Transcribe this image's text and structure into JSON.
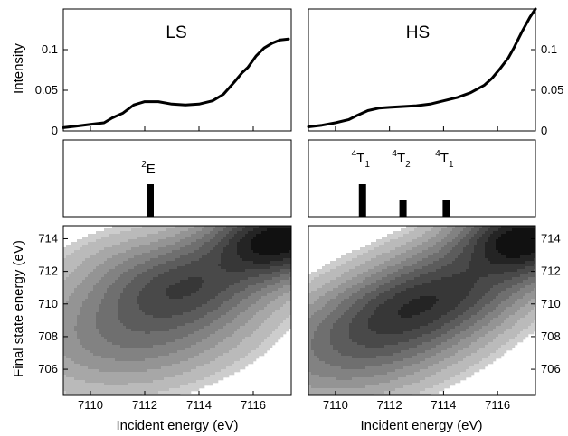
{
  "chart_data": {
    "type": "multi-panel",
    "x_axis": {
      "label": "Incident energy (eV)",
      "range": [
        7109,
        7117.4
      ],
      "ticks": [
        7110,
        7112,
        7114,
        7116
      ]
    },
    "y_top": {
      "label": "Intensity",
      "range": [
        0,
        0.15
      ],
      "ticks": [
        0,
        0.05,
        0.1
      ],
      "tick_labels": [
        "0",
        "0.05",
        "0.1"
      ]
    },
    "y_bottom": {
      "label": "Final state energy (eV)",
      "range": [
        704.4,
        714.8
      ],
      "ticks": [
        706,
        708,
        710,
        712,
        714
      ]
    },
    "panels": [
      {
        "title": "LS",
        "spectrum": {
          "x": [
            7109.0,
            7109.5,
            7110.0,
            7110.5,
            7110.8,
            7111.2,
            7111.6,
            7112.0,
            7112.5,
            7113.0,
            7113.5,
            7114.0,
            7114.5,
            7114.9,
            7115.3,
            7115.6,
            7115.8,
            7116.1,
            7116.4,
            7116.7,
            7117.0,
            7117.3
          ],
          "y": [
            0.004,
            0.006,
            0.008,
            0.01,
            0.016,
            0.022,
            0.032,
            0.036,
            0.036,
            0.033,
            0.032,
            0.033,
            0.037,
            0.045,
            0.06,
            0.072,
            0.078,
            0.092,
            0.102,
            0.108,
            0.112,
            0.113
          ]
        },
        "transitions": [
          {
            "term": "E",
            "multiplicity": "2",
            "subscript": "",
            "energy": 7112.2,
            "strength": 0.8
          }
        ],
        "contours": [
          {
            "cx": 7112.1,
            "cy": 709.0,
            "rx": 2.8,
            "ry": 2.1,
            "rot": 40,
            "peak": 0.42,
            "angle_y": 1
          },
          {
            "cx": 7113.4,
            "cy": 710.9,
            "rx": 1.6,
            "ry": 1.3,
            "rot": 30,
            "peak": 0.22,
            "angle_y": 1
          },
          {
            "cx": 7115.0,
            "cy": 712.4,
            "rx": 2.2,
            "ry": 1.6,
            "rot": 30,
            "peak": 0.28,
            "angle_y": 1
          },
          {
            "cx": 7117.0,
            "cy": 714.0,
            "rx": 1.5,
            "ry": 1.3,
            "rot": 30,
            "peak": 1.0,
            "angle_y": 1
          },
          {
            "cx": 7111.5,
            "cy": 712.2,
            "rx": 1.8,
            "ry": 1.6,
            "rot": 0,
            "peak": 0.08,
            "angle_y": 1
          }
        ]
      },
      {
        "title": "HS",
        "spectrum": {
          "x": [
            7109.0,
            7109.5,
            7110.0,
            7110.5,
            7110.8,
            7111.2,
            7111.6,
            7112.0,
            7112.5,
            7113.0,
            7113.5,
            7114.0,
            7114.5,
            7115.0,
            7115.5,
            7115.8,
            7116.1,
            7116.4,
            7116.6,
            7116.9,
            7117.2,
            7117.4
          ],
          "y": [
            0.005,
            0.007,
            0.01,
            0.014,
            0.019,
            0.025,
            0.028,
            0.029,
            0.03,
            0.031,
            0.033,
            0.037,
            0.041,
            0.047,
            0.056,
            0.065,
            0.077,
            0.09,
            0.102,
            0.122,
            0.14,
            0.15
          ]
        },
        "transitions": [
          {
            "term": "T",
            "multiplicity": "4",
            "subscript": "1",
            "energy": 7111.0,
            "strength": 0.8
          },
          {
            "term": "T",
            "multiplicity": "4",
            "subscript": "2",
            "energy": 7112.5,
            "strength": 0.4
          },
          {
            "term": "T",
            "multiplicity": "4",
            "subscript": "1",
            "energy": 7114.1,
            "strength": 0.4
          }
        ],
        "contours": [
          {
            "cx": 7111.6,
            "cy": 708.3,
            "rx": 3.0,
            "ry": 1.9,
            "rot": 40,
            "peak": 0.5,
            "angle_y": 1
          },
          {
            "cx": 7112.4,
            "cy": 709.5,
            "rx": 1.8,
            "ry": 1.3,
            "rot": 40,
            "peak": 0.22,
            "angle_y": 1
          },
          {
            "cx": 7114.1,
            "cy": 710.5,
            "rx": 1.8,
            "ry": 1.4,
            "rot": 30,
            "peak": 0.25,
            "angle_y": 1
          },
          {
            "cx": 7115.4,
            "cy": 712.3,
            "rx": 2.2,
            "ry": 1.6,
            "rot": 30,
            "peak": 0.3,
            "angle_y": 1
          },
          {
            "cx": 7117.0,
            "cy": 714.0,
            "rx": 1.4,
            "ry": 1.3,
            "rot": 30,
            "peak": 1.0,
            "angle_y": 1
          }
        ]
      }
    ],
    "colors": {
      "line": "#000000",
      "bar": "#000000",
      "contour_dark": "#111111",
      "contour_light": "#f2f2f2"
    }
  }
}
